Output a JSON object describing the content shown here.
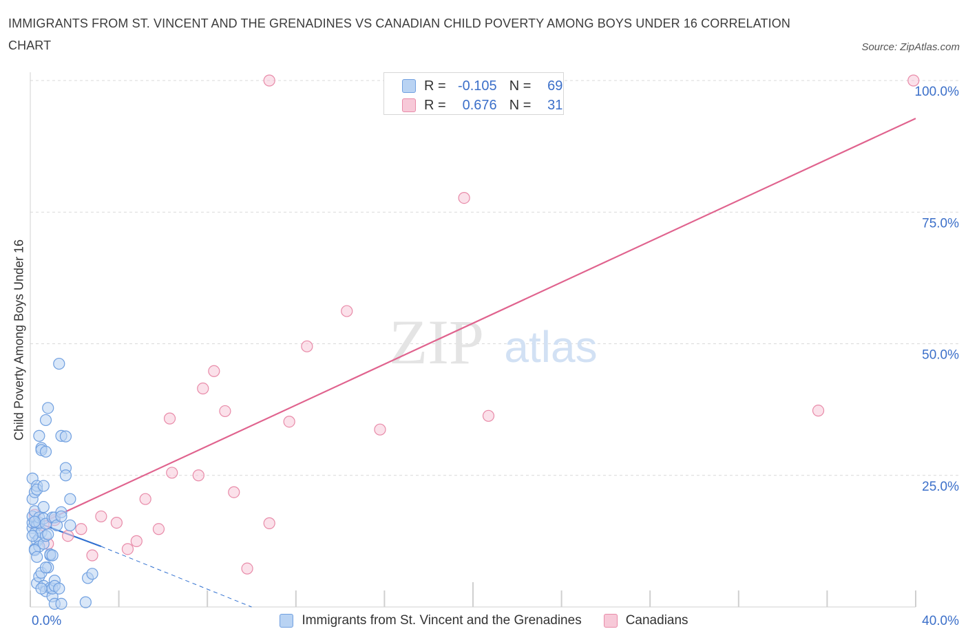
{
  "title": "IMMIGRANTS FROM ST. VINCENT AND THE GRENADINES VS CANADIAN CHILD POVERTY AMONG BOYS UNDER 16 CORRELATION CHART",
  "source": "Source: ZipAtlas.com",
  "watermark": {
    "zip": "ZIP",
    "atlas": "atlas"
  },
  "colors": {
    "blue_fill": "#b9d3f3",
    "blue_stroke": "#6f9fe0",
    "blue_line": "#2f6fd0",
    "pink_fill": "#f7c9d8",
    "pink_stroke": "#e88aa8",
    "pink_line": "#e0638e",
    "tick_label": "#3b6fc9",
    "grid": "#d9d9d9"
  },
  "legend": {
    "rows": [
      {
        "r_label": "R =",
        "r_value": "-0.105",
        "n_label": "N =",
        "n_value": "69",
        "series": "blue"
      },
      {
        "r_label": "R =",
        "r_value": "0.676",
        "n_label": "N =",
        "n_value": "31",
        "series": "pink"
      }
    ]
  },
  "bottom_legend": [
    {
      "label": "Immigrants from St. Vincent and the Grenadines",
      "series": "blue"
    },
    {
      "label": "Canadians",
      "series": "pink"
    }
  ],
  "chart_data": {
    "type": "scatter",
    "title": "IMMIGRANTS FROM ST. VINCENT AND THE GRENADINES VS CANADIAN CHILD POVERTY AMONG BOYS UNDER 16 CORRELATION CHART",
    "xlabel": "",
    "ylabel": "Child Poverty Among Boys Under 16",
    "xlim": [
      0,
      40
    ],
    "ylim": [
      0,
      100
    ],
    "x_tick_labels": [
      "0.0%",
      "40.0%"
    ],
    "y_ticks": [
      25,
      50,
      75,
      100
    ],
    "y_tick_labels": [
      "25.0%",
      "50.0%",
      "75.0%",
      "100.0%"
    ],
    "grid": "horizontal dashed",
    "legend_position": "top-center",
    "series": [
      {
        "name": "Immigrants from St. Vincent and the Grenadines",
        "color": "blue",
        "R": -0.105,
        "N": 69,
        "trend_solid": [
          [
            0,
            16.5
          ],
          [
            3.2,
            11.5
          ]
        ],
        "trend_dashed": [
          [
            3.2,
            11.5
          ],
          [
            10.0,
            0.0
          ]
        ],
        "points": [
          [
            0.1,
            15.0
          ],
          [
            0.1,
            16.0
          ],
          [
            0.1,
            17.2
          ],
          [
            0.2,
            18.2
          ],
          [
            0.1,
            20.5
          ],
          [
            0.1,
            24.4
          ],
          [
            0.2,
            21.8
          ],
          [
            0.3,
            23.0
          ],
          [
            0.3,
            22.3
          ],
          [
            0.6,
            23.0
          ],
          [
            0.3,
            15.5
          ],
          [
            0.2,
            14.0
          ],
          [
            0.3,
            12.5
          ],
          [
            0.2,
            11.0
          ],
          [
            0.4,
            13.0
          ],
          [
            0.4,
            11.5
          ],
          [
            0.5,
            14.2
          ],
          [
            0.4,
            16.0
          ],
          [
            0.4,
            17.0
          ],
          [
            0.6,
            16.8
          ],
          [
            0.7,
            15.8
          ],
          [
            0.6,
            19.0
          ],
          [
            0.6,
            12.0
          ],
          [
            0.7,
            13.5
          ],
          [
            0.8,
            13.8
          ],
          [
            0.9,
            9.8
          ],
          [
            0.5,
            30.2
          ],
          [
            0.5,
            29.8
          ],
          [
            0.7,
            29.5
          ],
          [
            0.4,
            32.5
          ],
          [
            0.7,
            35.5
          ],
          [
            0.8,
            37.8
          ],
          [
            1.0,
            17.0
          ],
          [
            1.1,
            17.0
          ],
          [
            1.2,
            15.5
          ],
          [
            1.4,
            18.0
          ],
          [
            1.4,
            17.2
          ],
          [
            1.4,
            32.5
          ],
          [
            1.6,
            32.4
          ],
          [
            1.6,
            26.4
          ],
          [
            1.6,
            25.0
          ],
          [
            1.8,
            20.5
          ],
          [
            1.8,
            15.5
          ],
          [
            1.3,
            46.2
          ],
          [
            0.3,
            4.5
          ],
          [
            0.4,
            5.8
          ],
          [
            0.5,
            6.5
          ],
          [
            0.6,
            4.0
          ],
          [
            0.7,
            3.0
          ],
          [
            0.8,
            7.5
          ],
          [
            0.7,
            7.5
          ],
          [
            0.9,
            3.6
          ],
          [
            1.0,
            2.0
          ],
          [
            1.0,
            3.5
          ],
          [
            1.1,
            5.0
          ],
          [
            1.1,
            4.0
          ],
          [
            1.3,
            3.5
          ],
          [
            1.1,
            0.6
          ],
          [
            1.4,
            0.6
          ],
          [
            0.5,
            3.5
          ],
          [
            0.9,
            10.0
          ],
          [
            1.0,
            9.8
          ],
          [
            0.2,
            10.8
          ],
          [
            0.3,
            9.5
          ],
          [
            2.6,
            5.5
          ],
          [
            2.8,
            6.3
          ],
          [
            2.5,
            0.9
          ],
          [
            0.1,
            13.5
          ],
          [
            0.2,
            16.2
          ]
        ]
      },
      {
        "name": "Canadians",
        "color": "pink",
        "R": 0.676,
        "N": 31,
        "trend": [
          [
            0,
            15.0
          ],
          [
            40,
            92.8
          ]
        ],
        "points": [
          [
            0.2,
            17.5
          ],
          [
            0.6,
            15.5
          ],
          [
            0.8,
            12.0
          ],
          [
            1.1,
            16.5
          ],
          [
            1.7,
            13.5
          ],
          [
            2.3,
            14.8
          ],
          [
            2.8,
            9.8
          ],
          [
            3.2,
            17.2
          ],
          [
            3.9,
            16.0
          ],
          [
            4.4,
            11.0
          ],
          [
            4.8,
            12.5
          ],
          [
            5.2,
            20.5
          ],
          [
            5.8,
            14.8
          ],
          [
            6.3,
            35.8
          ],
          [
            6.4,
            25.5
          ],
          [
            7.6,
            25.0
          ],
          [
            7.8,
            41.5
          ],
          [
            8.3,
            44.8
          ],
          [
            8.8,
            37.2
          ],
          [
            9.2,
            21.8
          ],
          [
            9.8,
            7.3
          ],
          [
            10.8,
            100.0
          ],
          [
            10.8,
            15.9
          ],
          [
            11.7,
            35.2
          ],
          [
            12.5,
            49.5
          ],
          [
            14.3,
            56.2
          ],
          [
            15.8,
            33.7
          ],
          [
            19.6,
            77.7
          ],
          [
            20.7,
            36.3
          ],
          [
            35.6,
            37.3
          ],
          [
            39.9,
            100.0
          ]
        ]
      }
    ]
  }
}
